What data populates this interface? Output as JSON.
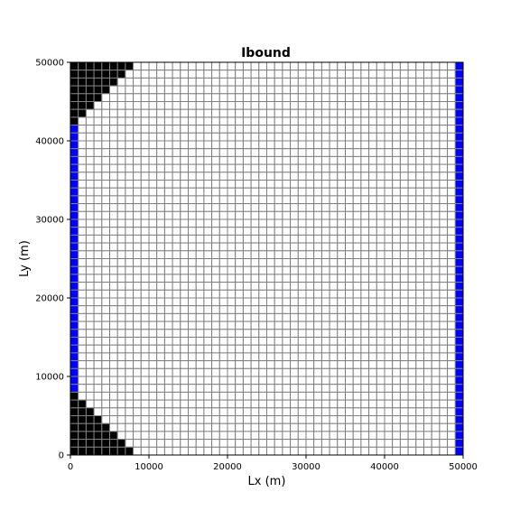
{
  "chart_data": {
    "type": "heatmap",
    "title": "Ibound",
    "xlabel": "Lx (m)",
    "ylabel": "Ly (m)",
    "xlim": [
      0,
      50000
    ],
    "ylim": [
      0,
      50000
    ],
    "xticks": [
      0,
      10000,
      20000,
      30000,
      40000,
      50000
    ],
    "yticks": [
      0,
      10000,
      20000,
      30000,
      40000,
      50000
    ],
    "ncol": 50,
    "nrow": 50,
    "cell_size_m": 1000,
    "categories": [
      {
        "value": 0,
        "meaning": "inactive",
        "color": "#000000"
      },
      {
        "value": 1,
        "meaning": "active",
        "color": "#ffffff"
      },
      {
        "value": -1,
        "meaning": "constant head",
        "color": "#0000ff"
      }
    ],
    "grid_line_color": "#808080",
    "inactive_cells_per_row_top": [
      8,
      7,
      6,
      5,
      4,
      3,
      2,
      1
    ],
    "inactive_cells_per_row_bottom": [
      1,
      2,
      3,
      4,
      5,
      6,
      7,
      8
    ],
    "constant_head_columns": [
      1,
      50
    ]
  }
}
